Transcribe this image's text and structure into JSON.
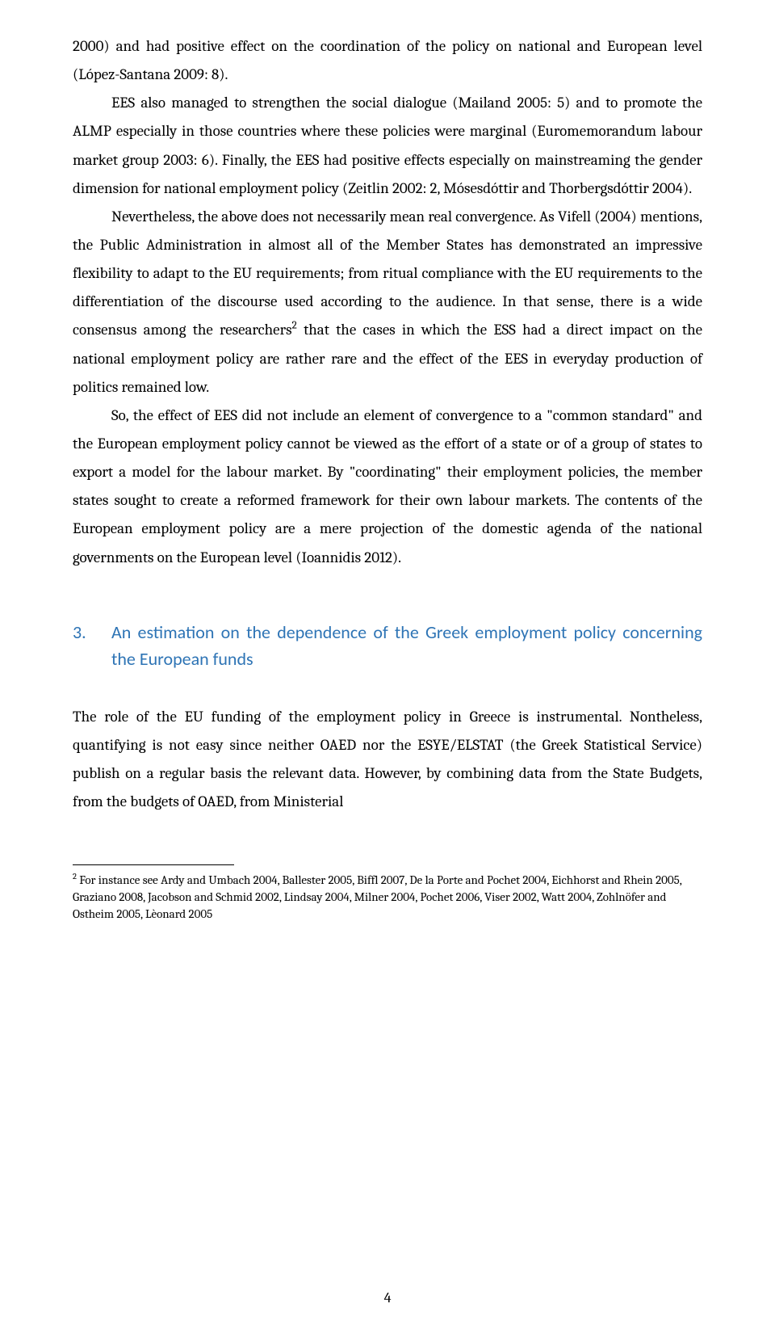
{
  "paragraphs": {
    "p1": "2000) and had positive effect on the coordination of the policy on national and European level (López-Santana 2009: 8).",
    "p2": "EES also managed to strengthen the social dialogue (Mailand 2005: 5) and to promote the ALMP especially in those countries where these policies were marginal (Euromemorandum labour market group 2003: 6). Finally, the EES had positive effects especially on mainstreaming the gender dimension for national employment policy (Zeitlin 2002: 2, Mósesdóttir and Thorbergsdóttir 2004).",
    "p3a": "Nevertheless, the above does not necessarily mean real convergence. As Vifell (2004) mentions, the Public Administration in almost all of the Member States has demonstrated an impressive flexibility to adapt to the EU requirements; from ritual compliance with the EU requirements to the differentiation of the discourse used according to the audience. In that sense, there is a wide consensus among the researchers",
    "p3b": " that the cases in which the ESS had a direct impact on the national employment policy are rather rare and the effect of the EES in everyday production of politics remained low.",
    "p4": "So, the effect of EES did not include an element of convergence to a \"common standard\" and the European employment policy cannot be viewed as the effort of a state or of a group of states to export a model for the labour market. By \"coordinating\" their employment policies, the member states sought to create a reformed framework for their own labour markets. The contents of the European employment policy are a mere projection of the domestic agenda of the national governments on the European level (Ioannidis 2012)."
  },
  "section": {
    "number": "3.",
    "title": "An estimation on the dependence of the Greek employment policy concerning the European funds"
  },
  "body2": {
    "p5": "The role of the EU funding of the employment policy in Greece is instrumental. Nontheless, quantifying is not easy since neither OAED nor the ESYE/ELSTAT (the Greek Statistical Service) publish on a regular basis the relevant data. However, by combining data from the State Budgets, from the budgets of OAED, from Ministerial"
  },
  "footnote": {
    "marker": "2",
    "text": " For instance see Ardy and Umbach 2004, Ballester 2005, Biffl 2007, De la Porte and Pochet 2004, Eichhorst and Rhein 2005, Graziano 2008, Jacobson and Schmid 2002, Lindsay 2004, Milner 2004, Pochet 2006, Viser 2002, Watt 2004, Zohlnöfer and Ostheim 2005, Lèonard 2005"
  },
  "pageNumber": "4"
}
